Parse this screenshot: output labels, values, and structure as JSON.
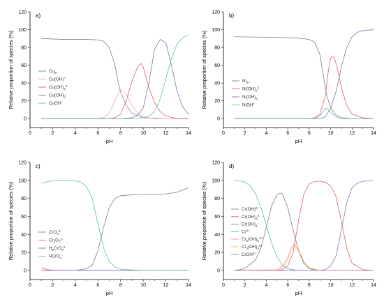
{
  "chart_data": [
    {
      "type": "line",
      "panel_label": "a)",
      "xlabel": "pH",
      "ylabel": "Relative proportion of species (%)",
      "xlim": [
        0,
        14
      ],
      "ylim": [
        -10,
        120
      ],
      "xticks": [
        "0",
        "2",
        "4",
        "6",
        "8",
        "10",
        "12",
        "14"
      ],
      "yticks": [
        "0",
        "20",
        "40",
        "60",
        "80",
        "100",
        "120"
      ],
      "legend_position": "left-middle",
      "series": [
        {
          "legend": [
            "Cu",
            "2+",
            ""
          ],
          "color": "#7f7f7f",
          "x": [
            1,
            2,
            3,
            4,
            5,
            6,
            6.5,
            7,
            7.5,
            7.8,
            8,
            8.5,
            9,
            10,
            12,
            14
          ],
          "y": [
            90,
            89.5,
            89,
            89,
            89,
            88.5,
            87,
            80,
            60,
            40,
            30,
            15,
            6,
            1,
            0,
            0
          ]
        },
        {
          "legend": [
            "Cu(OH)",
            "",
            "+"
          ],
          "color": "#f4a3a3",
          "x": [
            1,
            6,
            6.5,
            7,
            7.5,
            8,
            8.5,
            9,
            9.5,
            10,
            11,
            14
          ],
          "y": [
            0,
            0,
            1,
            6,
            20,
            33,
            28,
            15,
            6,
            2,
            0,
            0
          ]
        },
        {
          "legend": [
            "Cu(OH)",
            "2",
            "0"
          ],
          "color": "#e05a7a",
          "x": [
            1,
            7,
            7.5,
            8,
            8.5,
            9,
            9.5,
            9.8,
            10,
            10.5,
            11,
            11.5,
            12,
            13,
            14
          ],
          "y": [
            0,
            0,
            1,
            5,
            20,
            42,
            58,
            62,
            58,
            35,
            18,
            8,
            3,
            0,
            0
          ]
        },
        {
          "legend": [
            "Cu(OH)",
            "3",
            "-"
          ],
          "color": "#7a78b0",
          "x": [
            1,
            8,
            9,
            9.5,
            10,
            10.5,
            11,
            11.5,
            12,
            12.5,
            13,
            13.5,
            14
          ],
          "y": [
            0,
            0,
            1,
            4,
            12,
            40,
            78,
            89,
            85,
            60,
            30,
            13,
            5
          ]
        },
        {
          "legend": [
            "CuOH",
            "",
            "+"
          ],
          "color": "#5fbfa4",
          "x": [
            1,
            9,
            10,
            10.5,
            11,
            11.5,
            12,
            12.5,
            13,
            13.5,
            14
          ],
          "y": [
            0,
            0,
            1,
            3,
            8,
            22,
            45,
            68,
            84,
            91,
            94
          ]
        }
      ]
    },
    {
      "type": "line",
      "panel_label": "b)",
      "xlabel": "pH",
      "ylabel": "Relative proportion of species (%)",
      "xlim": [
        0,
        14
      ],
      "ylim": [
        -10,
        120
      ],
      "xticks": [
        "0",
        "2",
        "4",
        "6",
        "8",
        "10",
        "12",
        "14"
      ],
      "yticks": [
        "0",
        "20",
        "40",
        "60",
        "80",
        "100",
        "120"
      ],
      "legend_position": "left-middle",
      "series": [
        {
          "legend": [
            "Ni",
            "2+",
            ""
          ],
          "color": "#7f7f7f",
          "x": [
            1,
            4,
            6,
            7,
            8,
            8.5,
            9,
            9.3,
            9.6,
            10,
            10.5,
            11,
            12,
            14
          ],
          "y": [
            92,
            91.5,
            91,
            90.5,
            89,
            86,
            72,
            50,
            28,
            12,
            4,
            1,
            0,
            0
          ]
        },
        {
          "legend": [
            "Ni(OH)",
            "2",
            "0"
          ],
          "color": "#e05a7a",
          "x": [
            1,
            8,
            8.5,
            9,
            9.5,
            9.8,
            10,
            10.3,
            10.6,
            11,
            11.5,
            12,
            13,
            14
          ],
          "y": [
            0,
            0,
            1,
            5,
            25,
            55,
            68,
            70,
            58,
            35,
            15,
            5,
            1,
            0
          ]
        },
        {
          "legend": [
            "Ni(OH)",
            "3",
            "-"
          ],
          "color": "#7a78b0",
          "x": [
            1,
            9,
            9.5,
            10,
            10.5,
            11,
            11.5,
            12,
            12.5,
            13,
            14
          ],
          "y": [
            0,
            0,
            2,
            12,
            30,
            58,
            80,
            92,
            97,
            99,
            100
          ]
        },
        {
          "legend": [
            "NiOH",
            "",
            "+"
          ],
          "color": "#5fbfa4",
          "x": [
            1,
            8.5,
            9,
            9.3,
            9.6,
            9.8,
            10,
            10.5,
            11,
            14
          ],
          "y": [
            0,
            0,
            3,
            8,
            12,
            10,
            7,
            2,
            0,
            0
          ]
        }
      ]
    },
    {
      "type": "line",
      "panel_label": "c)",
      "xlabel": "pH",
      "ylabel": "Relative proportion of species (%)",
      "xlim": [
        0,
        14
      ],
      "ylim": [
        -10,
        120
      ],
      "xticks": [
        "0",
        "2",
        "4",
        "6",
        "8",
        "10",
        "12",
        "14"
      ],
      "yticks": [
        "0",
        "20",
        "40",
        "60",
        "80",
        "100",
        "120"
      ],
      "legend_position": "left-middle",
      "series": [
        {
          "legend": [
            "CrO",
            "4",
            "2-"
          ],
          "color": "#7f7f7f",
          "x": [
            1,
            4,
            5,
            5.5,
            6,
            6.5,
            7,
            7.5,
            8,
            9,
            10,
            12,
            13,
            14
          ],
          "y": [
            0,
            0,
            2,
            6,
            22,
            48,
            70,
            80,
            83,
            84,
            84.5,
            85,
            87,
            92
          ]
        },
        {
          "legend": [
            "Cr",
            "2",
            "O",
            "7",
            "2-"
          ],
          "color": "#e05a7a",
          "x": [
            1,
            2,
            3,
            4,
            5,
            6,
            14
          ],
          "y": [
            0,
            0,
            0,
            0,
            0,
            0,
            0
          ]
        },
        {
          "legend": [
            "H",
            "2",
            "CrO",
            "4",
            "0"
          ],
          "color": "#7a78b0",
          "x": [
            1,
            1.5,
            2,
            3,
            4,
            14
          ],
          "y": [
            3,
            1,
            0.3,
            0,
            0,
            0
          ]
        },
        {
          "legend": [
            "HCrO",
            "4",
            "-"
          ],
          "color": "#5fbfa4",
          "x": [
            1,
            1.5,
            2,
            3,
            4,
            4.5,
            5,
            5.5,
            6,
            6.5,
            7,
            7.5,
            8,
            9,
            10,
            14
          ],
          "y": [
            97,
            98.5,
            99.5,
            100,
            99.5,
            98,
            93,
            80,
            52,
            25,
            10,
            4,
            1.5,
            0.5,
            0,
            0
          ]
        }
      ]
    },
    {
      "type": "line",
      "panel_label": "d)",
      "xlabel": "pH",
      "ylabel": "Relative proportion of species (%)",
      "xlim": [
        0,
        14
      ],
      "ylim": [
        -10,
        120
      ],
      "xticks": [
        "0",
        "2",
        "4",
        "6",
        "8",
        "10",
        "12",
        "14"
      ],
      "yticks": [
        "0",
        "20",
        "40",
        "60",
        "80",
        "100",
        "120"
      ],
      "legend_position": "left-middle",
      "series": [
        {
          "legend": [
            "Cr(OH)",
            "",
            "2+"
          ],
          "color": "#7f7f7f",
          "x": [
            1,
            2,
            3,
            3.5,
            4,
            4.5,
            5,
            5.3,
            5.5,
            6,
            6.5,
            7,
            7.5,
            8,
            9,
            14
          ],
          "y": [
            0,
            2,
            12,
            25,
            48,
            72,
            84,
            86,
            85,
            70,
            45,
            22,
            8,
            2,
            0,
            0
          ]
        },
        {
          "legend": [
            "Cr(OH)",
            "3",
            "0"
          ],
          "color": "#e05a7a",
          "x": [
            1,
            5,
            5.5,
            6,
            6.5,
            7,
            7.5,
            8,
            8.5,
            9,
            9.5,
            10,
            10.5,
            11,
            11.5,
            12,
            13,
            14
          ],
          "y": [
            0,
            0,
            1,
            5,
            20,
            55,
            85,
            96,
            99,
            99,
            98,
            94,
            82,
            55,
            25,
            8,
            1,
            0
          ]
        },
        {
          "legend": [
            "Cr(OH)",
            "4",
            "-"
          ],
          "color": "#7a78b0",
          "x": [
            1,
            9,
            9.5,
            10,
            10.5,
            11,
            11.5,
            12,
            12.5,
            13,
            14
          ],
          "y": [
            0,
            0,
            1,
            5,
            16,
            45,
            75,
            92,
            97,
            99,
            100
          ]
        },
        {
          "legend": [
            "Cr",
            "",
            "3+"
          ],
          "color": "#5fbfa4",
          "x": [
            1,
            1.5,
            2,
            2.5,
            3,
            3.5,
            4,
            4.5,
            5,
            5.5,
            6,
            7,
            14
          ],
          "y": [
            100,
            99.5,
            98,
            94,
            85,
            70,
            50,
            30,
            15,
            6,
            2,
            0,
            0
          ]
        },
        {
          "legend": [
            "Cr",
            "2",
            "(OH)",
            "2",
            "4+"
          ],
          "color": "#f4a3a3",
          "x": [
            1,
            5,
            5.5,
            6,
            6.3,
            6.6,
            7,
            7.5,
            8,
            9,
            14
          ],
          "y": [
            0,
            1,
            5,
            15,
            25,
            28,
            22,
            10,
            3,
            0,
            0
          ]
        },
        {
          "legend": [
            "Cr",
            "3",
            "(OH)",
            "4",
            "5+"
          ],
          "color": "#e9b872",
          "x": [
            1,
            5,
            5.5,
            6,
            6.3,
            6.6,
            7,
            7.5,
            8,
            9,
            14
          ],
          "y": [
            0,
            0,
            3,
            12,
            22,
            30,
            24,
            10,
            3,
            0,
            0
          ]
        },
        {
          "legend": [
            "CrOH",
            "",
            "2+"
          ],
          "color": "#b57fb5",
          "x": [
            1,
            2,
            3,
            4,
            5,
            6,
            14
          ],
          "y": [
            0,
            0,
            0,
            0,
            0,
            0,
            0
          ]
        }
      ]
    }
  ]
}
